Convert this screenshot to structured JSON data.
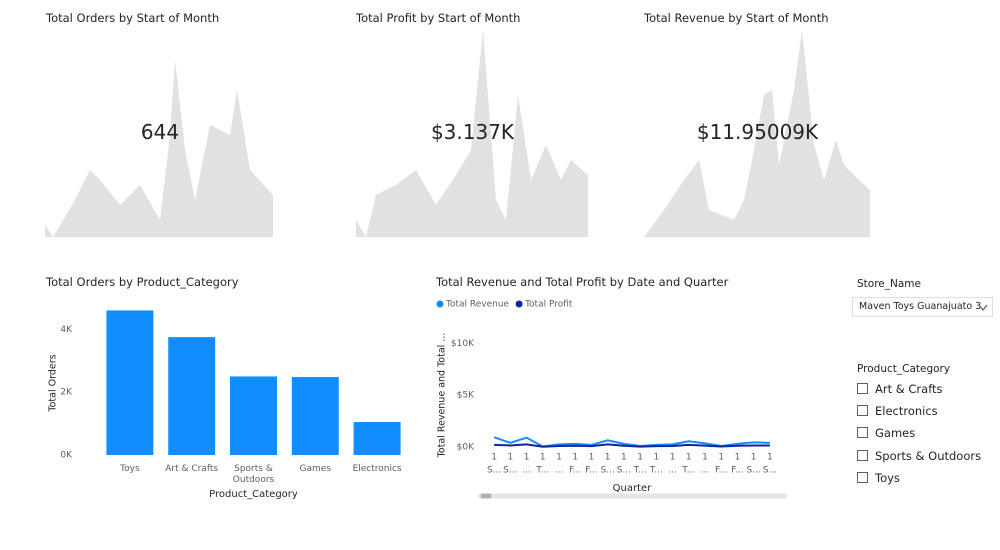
{
  "cards": [
    {
      "title": "Total Orders by Start of Month",
      "value": "644"
    },
    {
      "title": "Total Profit by Start of Month",
      "value": "$3.137K"
    },
    {
      "title": "Total Revenue by Start of Month",
      "value": "$11.95009K"
    }
  ],
  "chart_data": [
    {
      "type": "bar",
      "title": "Total Orders by Product_Category",
      "x_label": "Product_Category",
      "y_label": "Total Orders",
      "categories": [
        "Toys",
        "Art & Crafts",
        "Sports & Outdoors",
        "Games",
        "Electronics"
      ],
      "values": [
        4600,
        3750,
        2500,
        2480,
        1050
      ],
      "color": "#118dff",
      "ylim": [
        0,
        4900
      ],
      "yticks": [
        {
          "value": 0,
          "label": "0K"
        },
        {
          "value": 2000,
          "label": "2K"
        },
        {
          "value": 4000,
          "label": "4K"
        }
      ],
      "grid": false
    },
    {
      "type": "line",
      "title": "Total Revenue and Total Profit by Date and Quarter",
      "x_label": "Quarter",
      "y_label": "Total Revenue and Total ...",
      "categories": [
        "1",
        "1",
        "1",
        "1",
        "1",
        "1",
        "1",
        "1",
        "1",
        "1",
        "1",
        "1",
        "1",
        "1",
        "1",
        "1",
        "1",
        "1"
      ],
      "subcategories": [
        "S...",
        "S...",
        "...",
        "T...",
        "...",
        "F...",
        "F...",
        "S...",
        "S...",
        "T...",
        "T...",
        "...",
        "T...",
        "...",
        "F...",
        "F...",
        "S...",
        "S..."
      ],
      "series": [
        {
          "name": "Total Revenue",
          "color": "#118dff",
          "values": [
            950,
            400,
            900,
            50,
            250,
            300,
            200,
            650,
            300,
            100,
            200,
            250,
            550,
            350,
            100,
            300,
            450,
            400
          ]
        },
        {
          "name": "Total Profit",
          "color": "#12239e",
          "values": [
            200,
            150,
            250,
            30,
            100,
            120,
            80,
            250,
            120,
            40,
            80,
            100,
            200,
            130,
            50,
            120,
            150,
            150
          ]
        }
      ],
      "ylim": [
        0,
        11000
      ],
      "yticks": [
        {
          "value": 0,
          "label": "$0K"
        },
        {
          "value": 5000,
          "label": "$5K"
        },
        {
          "value": 10000,
          "label": "$10K"
        }
      ],
      "grid": false
    }
  ],
  "slicers": [
    {
      "title": "Store_Name",
      "selected": "Maven Toys Guanajuato 3"
    },
    {
      "title": "Product_Category",
      "items": [
        "Art & Crafts",
        "Electronics",
        "Games",
        "Sports & Outdoors",
        "Toys"
      ]
    }
  ]
}
